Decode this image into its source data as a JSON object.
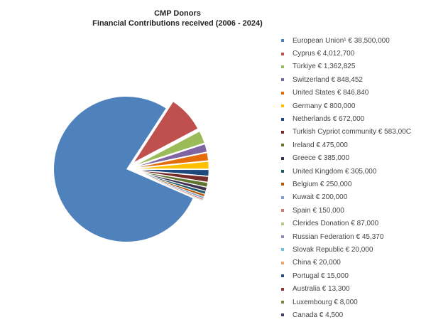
{
  "chart_data": {
    "type": "pie",
    "title": "CMP Donors",
    "subtitle": "Financial Contributions received (2006 - 2024)",
    "legend_position": "right",
    "slices": [
      {
        "label": "European Union¹ € 38,500,000",
        "value": 38500000,
        "color": "#4f81bd"
      },
      {
        "label": "Cyprus € 4,012,700",
        "value": 4012700,
        "color": "#c0504d"
      },
      {
        "label": "Türkiye € 1,362,825",
        "value": 1362825,
        "color": "#9bbb59"
      },
      {
        "label": "Switzerland € 848,452",
        "value": 848452,
        "color": "#8064a2"
      },
      {
        "label": "United States  € 846,840",
        "value": 846840,
        "color": "#e46c0a"
      },
      {
        "label": "Germany € 800,000",
        "value": 800000,
        "color": "#ffc000"
      },
      {
        "label": "Netherlands € 672,000",
        "value": 672000,
        "color": "#1f497d"
      },
      {
        "label": "Turkish Cypriot community € 583,00C",
        "value": 583000,
        "color": "#772c2a"
      },
      {
        "label": "Ireland € 475,000",
        "value": 475000,
        "color": "#5f7530"
      },
      {
        "label": "Greece € 385,000",
        "value": 385000,
        "color": "#3f3151"
      },
      {
        "label": "United Kingdom € 305,000",
        "value": 305000,
        "color": "#215968"
      },
      {
        "label": "Belgium  € 250,000",
        "value": 250000,
        "color": "#b65708"
      },
      {
        "label": "Kuwait € 200,000",
        "value": 200000,
        "color": "#7f9fc9"
      },
      {
        "label": "Spain  € 150,000",
        "value": 150000,
        "color": "#cd7d7b"
      },
      {
        "label": "Clerides Donation € 87,000",
        "value": 87000,
        "color": "#b3cb85"
      },
      {
        "label": "Russian Federation € 45,370",
        "value": 45370,
        "color": "#9a8ab5"
      },
      {
        "label": "Slovak Republic € 20,000",
        "value": 20000,
        "color": "#6fc1d6"
      },
      {
        "label": "China € 20,000",
        "value": 20000,
        "color": "#f3a66a"
      },
      {
        "label": "Portugal € 15,000",
        "value": 15000,
        "color": "#2c4d75"
      },
      {
        "label": "Australia  € 13,300",
        "value": 13300,
        "color": "#8c3836"
      },
      {
        "label": "Luxembourg € 8,000",
        "value": 8000,
        "color": "#71893f"
      },
      {
        "label": "Canada € 4,500",
        "value": 4500,
        "color": "#4b3b62"
      }
    ]
  }
}
